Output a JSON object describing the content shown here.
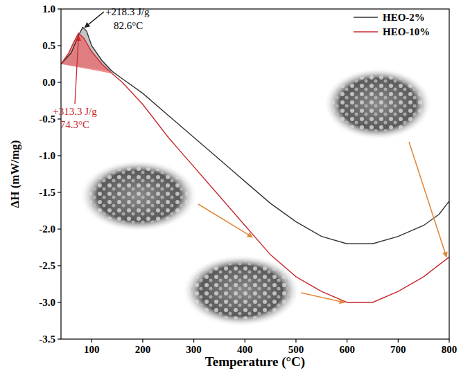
{
  "chart_data": {
    "type": "line",
    "x_label": "Temperature (°C)",
    "y_label": "ΔH (mW/mg)",
    "xlim": [
      40,
      800
    ],
    "xticks": [
      100,
      200,
      300,
      400,
      500,
      600,
      700,
      800
    ],
    "ylim": [
      -3.5,
      1.0
    ],
    "yticks": [
      {
        "value": 1.0,
        "label": "1.0"
      },
      0.5,
      {
        "value": 0.0,
        "label": "0.0"
      },
      -0.5,
      {
        "value": -1.0,
        "label": "-1.0"
      },
      -1.5,
      {
        "value": -2.0,
        "label": "-2.0"
      },
      -2.5,
      {
        "value": -3.0,
        "label": "-3.0"
      },
      -3.5
    ],
    "legend": "upper right",
    "grid": false,
    "series": [
      {
        "name": "HEO-2%",
        "color": "#333333",
        "x": [
          40,
          60,
          75,
          82.6,
          90,
          100,
          120,
          140,
          160,
          200,
          250,
          300,
          350,
          400,
          450,
          500,
          550,
          600,
          650,
          700,
          750,
          780,
          800
        ],
        "values": [
          0.25,
          0.4,
          0.65,
          0.75,
          0.7,
          0.5,
          0.3,
          0.15,
          0.05,
          -0.15,
          -0.45,
          -0.75,
          -1.05,
          -1.35,
          -1.65,
          -1.9,
          -2.1,
          -2.2,
          -2.2,
          -2.1,
          -1.95,
          -1.8,
          -1.62
        ],
        "peak": {
          "temperature": 82.6,
          "enthalpy_label": "+218.3 J/g",
          "temperature_label": "82.6°C",
          "color": "#b0b0b0"
        }
      },
      {
        "name": "HEO-10%",
        "color": "#c8282d",
        "x": [
          40,
          55,
          65,
          74.3,
          85,
          100,
          120,
          140,
          160,
          200,
          250,
          300,
          350,
          400,
          450,
          500,
          550,
          600,
          650,
          700,
          750,
          800
        ],
        "values": [
          0.25,
          0.4,
          0.55,
          0.67,
          0.6,
          0.42,
          0.25,
          0.12,
          0.0,
          -0.3,
          -0.75,
          -1.15,
          -1.55,
          -1.95,
          -2.35,
          -2.65,
          -2.85,
          -3.0,
          -3.0,
          -2.85,
          -2.65,
          -2.38
        ],
        "peak": {
          "temperature": 74.3,
          "enthalpy_label": "+313.3 J/g",
          "temperature_label": "74.3°C",
          "color": "#e8676b"
        }
      }
    ],
    "insets": [
      {
        "series": 1,
        "temperature": 420
      },
      {
        "series": 1,
        "temperature": 600
      },
      {
        "series": 1,
        "temperature": 800
      }
    ]
  }
}
